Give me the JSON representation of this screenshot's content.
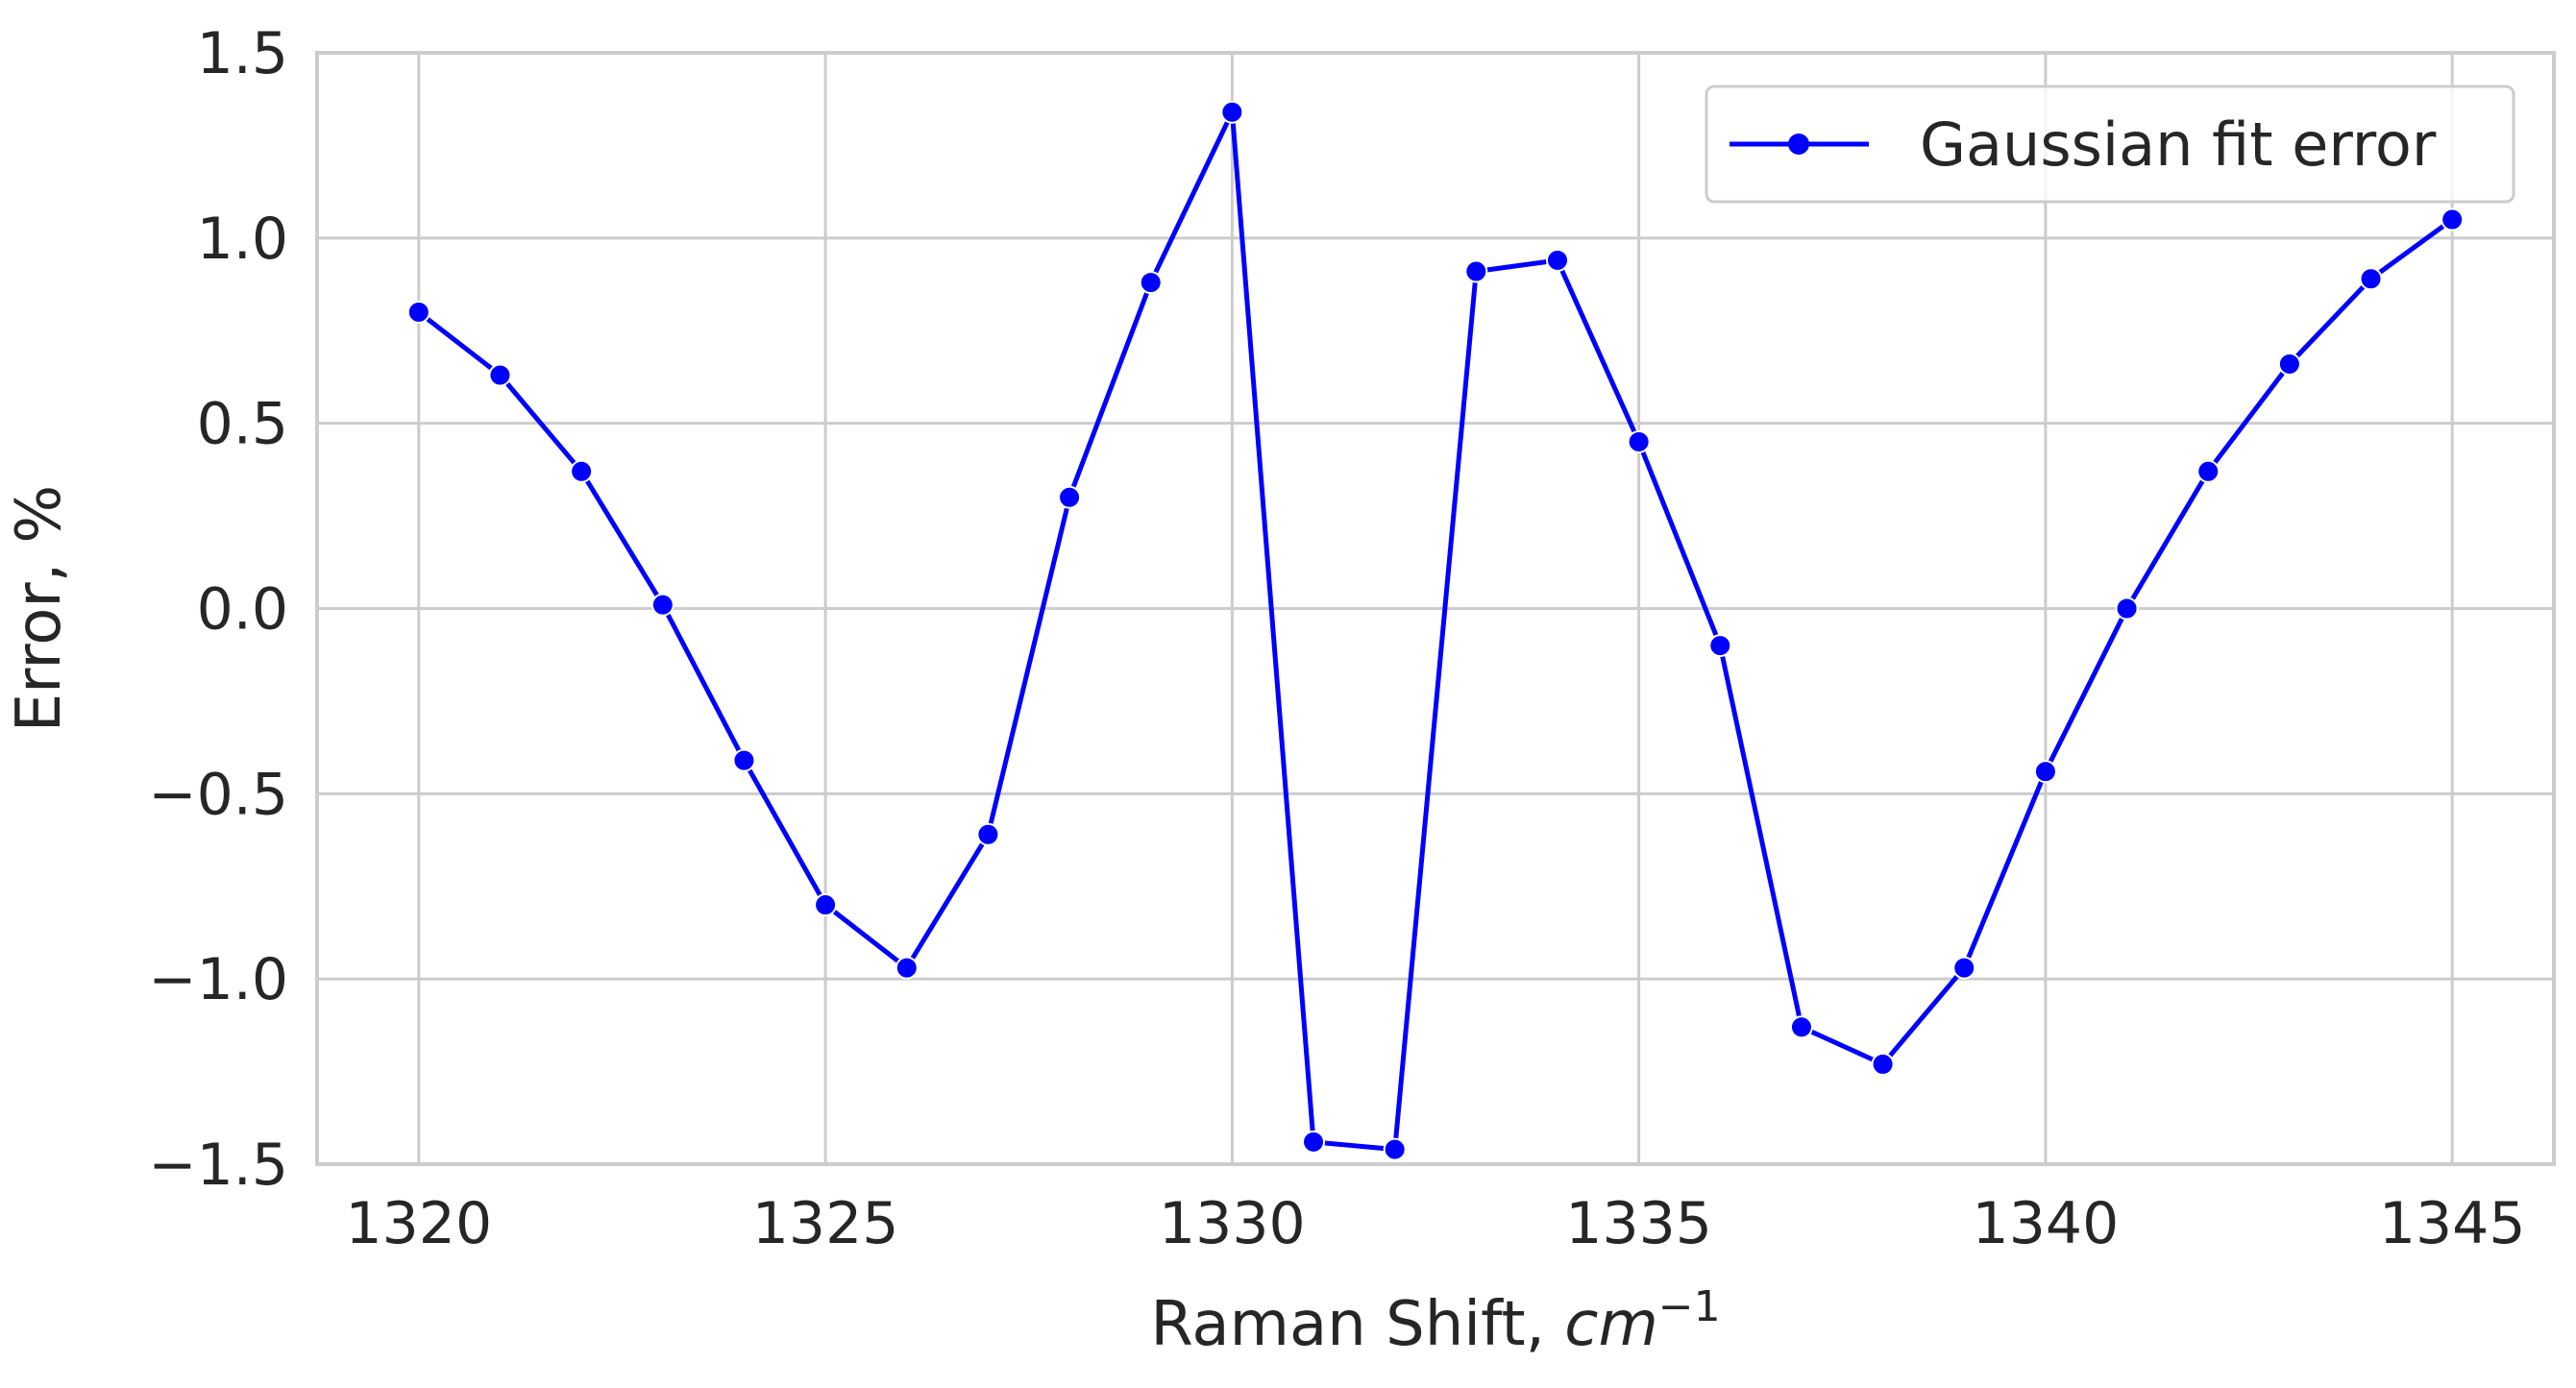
{
  "chart_data": {
    "type": "line",
    "xlabel_text": "Raman Shift, ",
    "xlabel_unit": "cm",
    "xlabel_exp": "−1",
    "ylabel": "Error, %",
    "xlim": [
      1318.75,
      1346.25
    ],
    "ylim": [
      -1.5,
      1.5
    ],
    "x_ticks": [
      1320,
      1325,
      1330,
      1335,
      1340,
      1345
    ],
    "x_tick_labels": [
      "1320",
      "1325",
      "1330",
      "1335",
      "1340",
      "1345"
    ],
    "y_ticks": [
      1.5,
      1.0,
      0.5,
      0.0,
      -0.5,
      -1.0,
      -1.5
    ],
    "y_tick_labels": [
      "1.5",
      "1.0",
      "0.5",
      "0.0",
      "−0.5",
      "−1.0",
      "−1.5"
    ],
    "grid": true,
    "legend_position": "top-right",
    "series": [
      {
        "name": "Gaussian fit error",
        "color": "#0000ff",
        "marker": "circle",
        "x": [
          1320,
          1321,
          1322,
          1323,
          1324,
          1325,
          1326,
          1327,
          1328,
          1329,
          1330,
          1331,
          1332,
          1333,
          1334,
          1335,
          1336,
          1337,
          1338,
          1339,
          1340,
          1341,
          1342,
          1343,
          1344,
          1345
        ],
        "y": [
          0.8,
          0.63,
          0.37,
          0.01,
          -0.41,
          -0.8,
          -0.97,
          -0.61,
          0.3,
          0.88,
          1.34,
          -1.44,
          -1.46,
          0.91,
          0.94,
          0.45,
          -0.1,
          -1.13,
          -1.23,
          -0.97,
          -0.44,
          0.0,
          0.37,
          0.66,
          0.89,
          1.05
        ]
      }
    ]
  }
}
